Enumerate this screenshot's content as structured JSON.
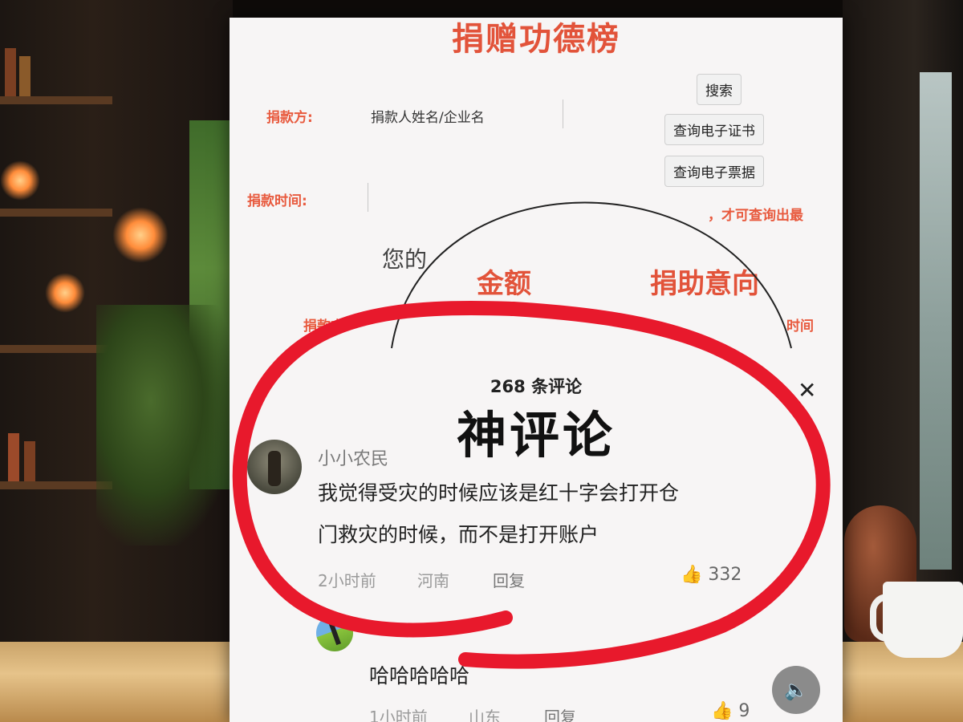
{
  "form": {
    "title": "捐赠功德榜",
    "donor_label": "捐款方:",
    "donor_placeholder": "捐款人姓名/企业名",
    "time_label": "捐款时间:",
    "search_label": "搜索",
    "cert_label": "查询电子证书",
    "receipt_label": "查询电子票据",
    "note": "，才可查询出最",
    "partial_greeting": "您的",
    "col_amount": "金额",
    "col_intent": "捐助意向",
    "col_donor": "捐款方",
    "col_time": "时间"
  },
  "comments_panel": {
    "count": "268 条评论",
    "heading": "神评论",
    "items": [
      {
        "user": "小小农民",
        "text_line1": "我觉得受灾的时候应该是红十字会打开仓",
        "text_line2": "门救灾的时候，而不是打开账户",
        "time": "2小时前",
        "location": "河南",
        "reply": "回复",
        "likes": "332"
      },
      {
        "user": "",
        "text_line1": "哈哈哈哈哈",
        "time": "1小时前",
        "location": "山东",
        "reply": "回复",
        "likes": "9"
      }
    ]
  },
  "colors": {
    "accent": "#e2533a",
    "annotation": "#e8192c"
  },
  "icons": [
    "close-icon",
    "thumbs-up-icon",
    "speaker-icon",
    "user-avatar"
  ]
}
